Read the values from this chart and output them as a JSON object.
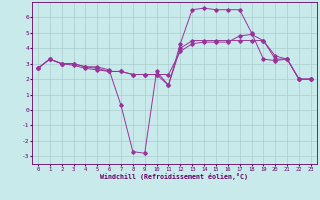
{
  "xlabel": "Windchill (Refroidissement éolien,°C)",
  "bg_color": "#c8eaea",
  "line_color": "#993399",
  "grid_color": "#aacccc",
  "ylim": [
    -3.5,
    7.0
  ],
  "xlim": [
    -0.5,
    23.5
  ],
  "yticks": [
    -3,
    -2,
    -1,
    0,
    1,
    2,
    3,
    4,
    5,
    6
  ],
  "xticks": [
    0,
    1,
    2,
    3,
    4,
    5,
    6,
    7,
    8,
    9,
    10,
    11,
    12,
    13,
    14,
    15,
    16,
    17,
    18,
    19,
    20,
    21,
    22,
    23
  ],
  "line1_x": [
    0,
    1,
    2,
    3,
    4,
    5,
    6,
    7,
    8,
    9,
    10,
    11,
    12,
    13,
    14,
    15,
    16,
    17,
    18,
    19,
    20,
    21,
    22,
    23
  ],
  "line1_y": [
    2.7,
    3.3,
    3.0,
    3.0,
    2.8,
    2.8,
    2.6,
    0.3,
    -2.7,
    -2.8,
    2.5,
    1.6,
    4.3,
    6.5,
    6.6,
    6.5,
    6.5,
    6.5,
    5.0,
    3.3,
    3.2,
    3.3,
    2.0,
    2.0
  ],
  "line2_x": [
    0,
    1,
    2,
    3,
    4,
    5,
    6,
    7,
    8,
    9,
    10,
    11,
    12,
    13,
    14,
    15,
    16,
    17,
    18,
    19,
    20,
    21,
    22,
    23
  ],
  "line2_y": [
    2.7,
    3.3,
    3.0,
    3.0,
    2.8,
    2.7,
    2.5,
    2.5,
    2.3,
    2.3,
    2.3,
    2.3,
    3.8,
    4.3,
    4.4,
    4.4,
    4.4,
    4.8,
    4.9,
    4.5,
    3.5,
    3.3,
    2.0,
    2.0
  ],
  "line3_x": [
    0,
    1,
    2,
    3,
    4,
    5,
    6,
    7,
    8,
    9,
    10,
    11,
    12,
    13,
    14,
    15,
    16,
    17,
    18,
    19,
    20,
    21,
    22,
    23
  ],
  "line3_y": [
    2.7,
    3.3,
    3.0,
    2.9,
    2.7,
    2.6,
    2.5,
    2.5,
    2.3,
    2.3,
    2.3,
    1.6,
    4.0,
    4.5,
    4.5,
    4.5,
    4.5,
    4.5,
    4.5,
    4.5,
    3.3,
    3.3,
    2.0,
    2.0
  ]
}
